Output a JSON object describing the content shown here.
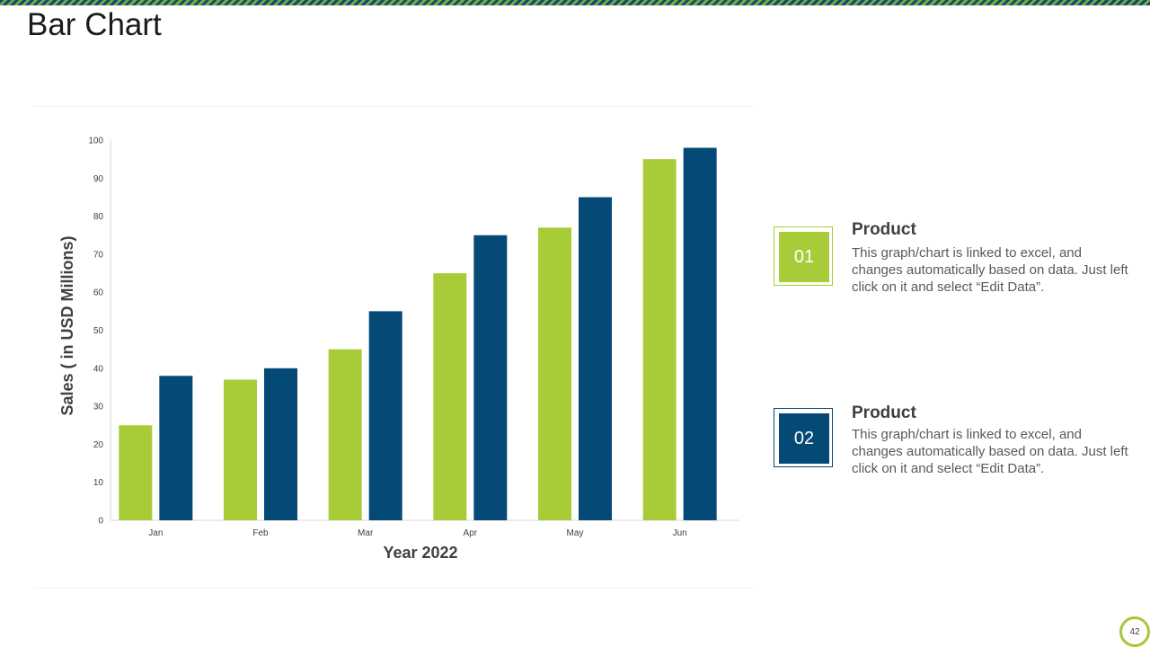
{
  "slide": {
    "title": "Bar Chart",
    "page_number": "42"
  },
  "colors": {
    "series1": "#a8cc38",
    "series2": "#054a77",
    "accent_stripe_dark": "#0a4f72",
    "accent_stripe_light": "#7ea83a"
  },
  "chart_data": {
    "type": "bar",
    "title": "",
    "xlabel": "Year 2022",
    "ylabel": "Sales ( in USD Millions)",
    "ylim": [
      0,
      100
    ],
    "yticks": [
      0,
      10,
      20,
      30,
      40,
      50,
      60,
      70,
      80,
      90,
      100
    ],
    "categories": [
      "Jan",
      "Feb",
      "Mar",
      "Apr",
      "May",
      "Jun"
    ],
    "series": [
      {
        "name": "Product 01",
        "values": [
          25,
          37,
          45,
          65,
          77,
          95
        ]
      },
      {
        "name": "Product 02",
        "values": [
          38,
          40,
          55,
          75,
          85,
          98
        ]
      }
    ],
    "grid": false,
    "legend": "right"
  },
  "legend": [
    {
      "number": "01",
      "title": "Product",
      "description": "This graph/chart is linked to excel, and changes automatically based on data. Just left click on it and select “Edit Data”."
    },
    {
      "number": "02",
      "title": "Product",
      "description": "This graph/chart is linked to excel, and changes automatically based on data. Just left click on it and select “Edit Data”."
    }
  ]
}
